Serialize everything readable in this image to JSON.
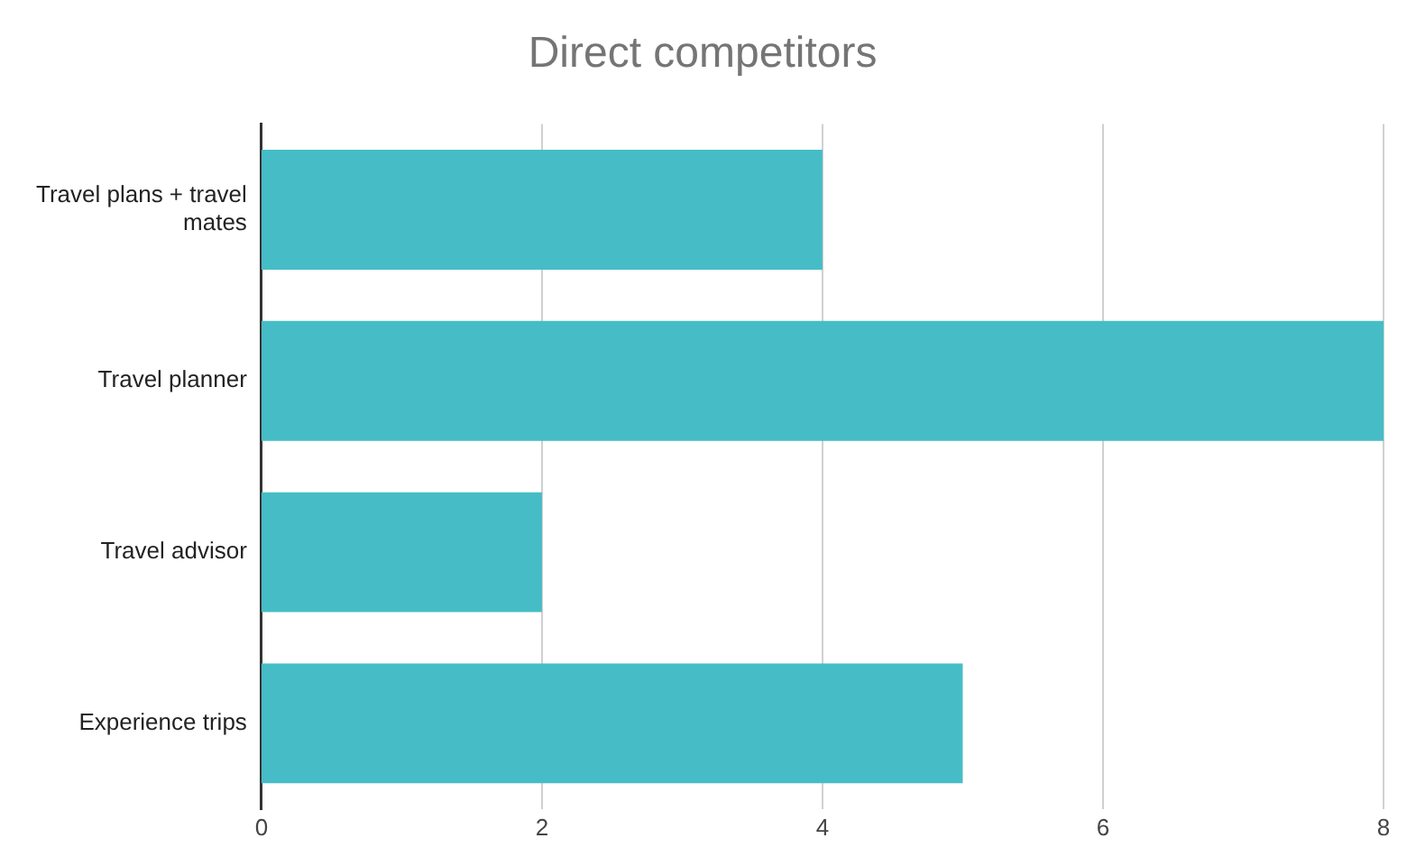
{
  "chart_data": {
    "type": "bar",
    "orientation": "horizontal",
    "title": "Direct competitors",
    "categories": [
      "Travel plans + travel mates",
      "Travel planner",
      "Travel advisor",
      "Experience trips"
    ],
    "values": [
      4,
      8,
      2,
      5
    ],
    "color": "#46bdc6",
    "xlim": [
      0,
      8
    ],
    "xticks": [
      0,
      2,
      4,
      6,
      8
    ],
    "grid": "x"
  }
}
